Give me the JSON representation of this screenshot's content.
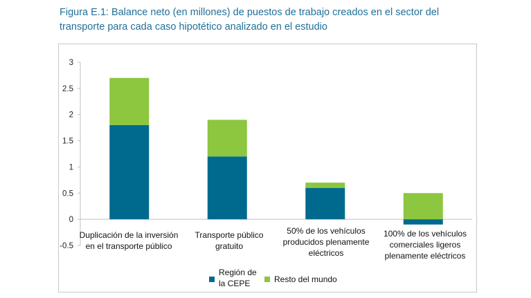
{
  "figure_title": "Figura E.1: Balance neto (en millones) de puestos de trabajo creados en el sector del transporte para cada caso hipotético analizado en el estudio",
  "colors": {
    "title": "#1f6f99",
    "region_cepe": "#006a8e",
    "resto_mundo": "#8dc63f",
    "axis": "#bfbfbf"
  },
  "chart_data": {
    "type": "bar",
    "stacked": true,
    "title": "",
    "xlabel": "",
    "ylabel": "",
    "ylim": [
      -0.5,
      3
    ],
    "y_ticks": [
      "-0.5",
      "0",
      "0.5",
      "1",
      "1.5",
      "2",
      "2.5",
      "3"
    ],
    "grid": false,
    "legend_position": "bottom",
    "categories": [
      "Duplicación de la inversión en el transporte público",
      "Transporte público gratuito",
      "50% de los vehículos producidos plenamente eléctricos",
      "100% de los vehículos comerciales ligeros plenamente eléctricos"
    ],
    "series": [
      {
        "name": "Región de la CEPE",
        "color": "#006a8e",
        "values": [
          1.8,
          1.2,
          0.6,
          -0.1
        ]
      },
      {
        "name": "Resto del mundo",
        "color": "#8dc63f",
        "values": [
          0.9,
          0.7,
          0.1,
          0.5
        ]
      }
    ]
  }
}
